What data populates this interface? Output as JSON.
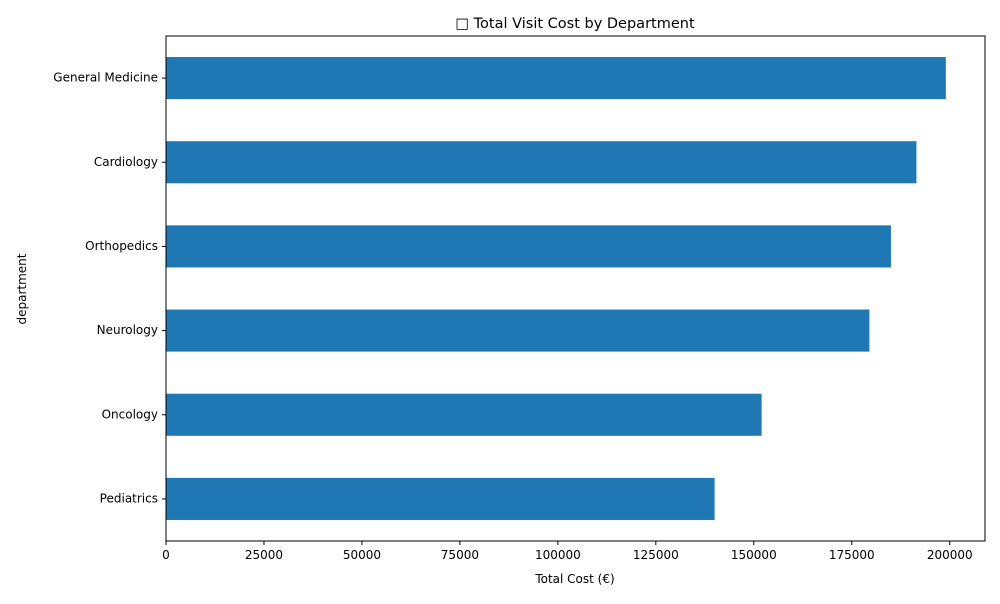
{
  "chart_data": {
    "type": "bar",
    "orientation": "horizontal",
    "title": "□ Total Visit Cost by Department",
    "xlabel": "Total Cost (€)",
    "ylabel": "department",
    "categories": [
      "Pediatrics",
      "Oncology",
      "Neurology",
      "Orthopedics",
      "Cardiology",
      "General Medicine"
    ],
    "values": [
      140000,
      152000,
      179500,
      185000,
      191500,
      199000
    ],
    "xlim": [
      0,
      209000
    ],
    "xticks": [
      "0",
      "25000",
      "50000",
      "75000",
      "100000",
      "125000",
      "150000",
      "175000",
      "200000"
    ],
    "grid": false,
    "bar_color": "#1f77b4"
  }
}
